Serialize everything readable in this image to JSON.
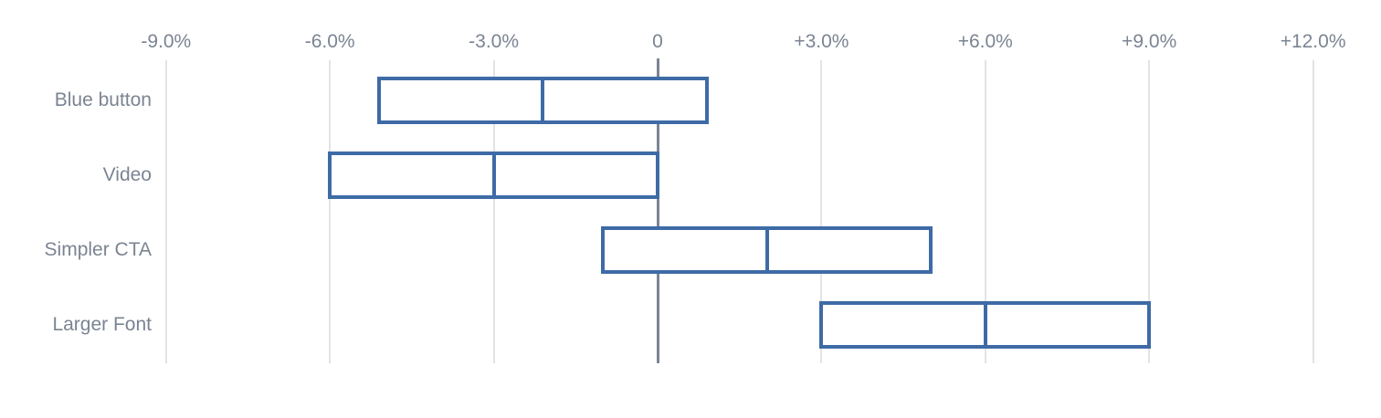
{
  "page": {
    "background": "#ffffff"
  },
  "chart_data": {
    "type": "bar",
    "subtype": "horizontal-range-interval",
    "title": "",
    "categories": [
      "Blue button",
      "Video",
      "Simpler CTA",
      "Larger Font"
    ],
    "series": [
      {
        "name": "Lower bound (%)",
        "values": [
          -5.1,
          -6.0,
          -1.0,
          3.0
        ]
      },
      {
        "name": "Midpoint (%)",
        "values": [
          -2.1,
          -3.0,
          2.0,
          6.0
        ]
      },
      {
        "name": "Upper bound (%)",
        "values": [
          0.9,
          0.0,
          5.0,
          9.0
        ]
      }
    ],
    "x_axis": {
      "unit": "percent",
      "ticks": [
        -9,
        -6,
        -3,
        0,
        3,
        6,
        9,
        12
      ],
      "tick_labels": [
        "-9.0%",
        "-6.0%",
        "-3.0%",
        "0",
        "+3.0%",
        "+6.0%",
        "+9.0%",
        "+12.0%"
      ],
      "position": "top",
      "grid": true,
      "zero_line_emphasized": true
    },
    "legend": {
      "visible": false
    },
    "colors": {
      "box_border": "#3e6ba6",
      "box_fill": "#ffffff",
      "gridline": "#e2e3e6",
      "zero_line": "#7b8493",
      "label_text": "#7b8492"
    }
  }
}
